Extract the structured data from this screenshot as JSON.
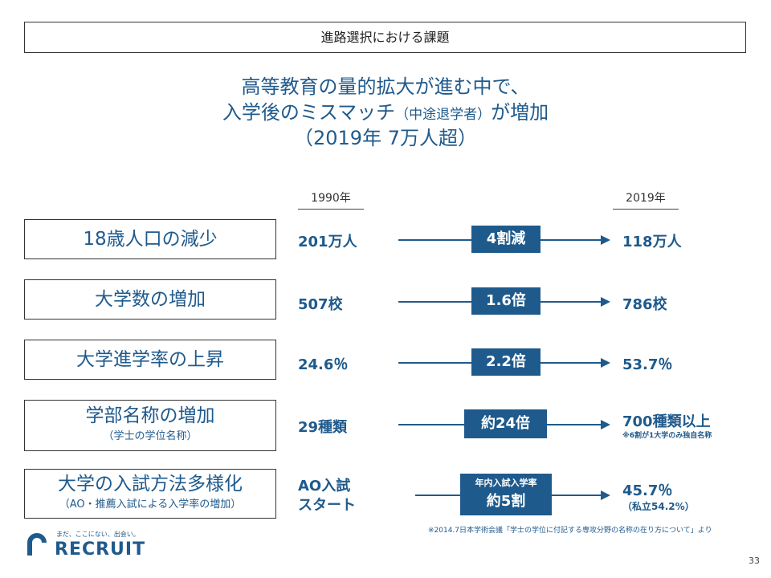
{
  "slide_title": "進路選択における課題",
  "headline": {
    "line1": "高等教育の量的拡大が進む中で、",
    "line2_a": "入学後のミスマッチ",
    "line2_b": "（中途退学者）",
    "line2_c": "が増加",
    "line3": "（2019年 7万人超）"
  },
  "years": {
    "from": "1990年",
    "to": "2019年"
  },
  "rows": [
    {
      "label": "18歳人口の減少",
      "sub": "",
      "from": "201万人",
      "badge": "4割減",
      "to": "118万人",
      "to_note": ""
    },
    {
      "label": "大学数の増加",
      "sub": "",
      "from": "507校",
      "badge": "1.6倍",
      "to": "786校",
      "to_note": ""
    },
    {
      "label": "大学進学率の上昇",
      "sub": "",
      "from": "24.6％",
      "badge": "2.2倍",
      "to": "53.7％",
      "to_note": ""
    },
    {
      "label": "学部名称の増加",
      "sub": "（学士の学位名称）",
      "from": "29種類",
      "badge": "約24倍",
      "to": "700種類以上",
      "to_note": "※6割が1大学のみ独自名称"
    },
    {
      "label": "大学の入試方法多様化",
      "sub": "（AO・推薦入試による入学率の増加）",
      "from_line1": "AO入試",
      "from_line2": "スタート",
      "badge_small": "年内入試入学率",
      "badge": "約5割",
      "to": "45.7％",
      "to_note": "（私立54.2%）"
    }
  ],
  "footnote": "※2014.7日本学術会議「学士の学位に付記する専攻分野の名称の在り方について」より",
  "logo": {
    "tagline": "まだ、ここにない、出会い。",
    "name": "RECRUIT"
  },
  "page_number": "33",
  "colors": {
    "accent": "#1f5a8c"
  }
}
